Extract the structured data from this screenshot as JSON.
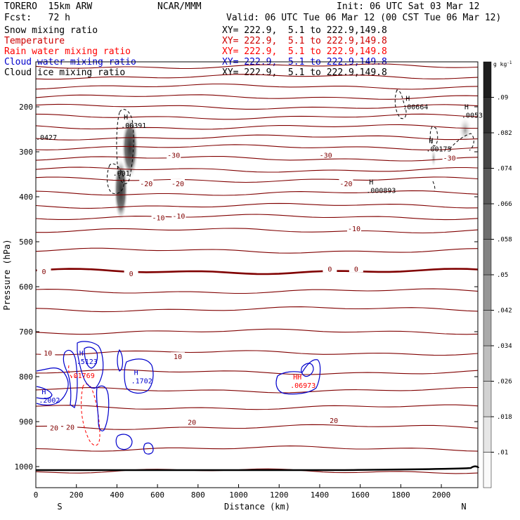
{
  "header": {
    "model": "TORERO  15km ARW",
    "org": "NCAR/MMM",
    "init": "Init: 06 UTC Sat 03 Mar 12",
    "fcst": "Fcst:   72 h",
    "valid": "Valid: 06 UTC Tue 06 Mar 12 (00 CST Tue 06 Mar 12)"
  },
  "fields": [
    {
      "label": "Snow mixing ratio",
      "xy": "XY= 222.9,  5.1 to 222.9,149.8",
      "color": "#000000"
    },
    {
      "label": "Temperature",
      "xy": "XY= 222.9,  5.1 to 222.9,149.8",
      "color": "#cc0000"
    },
    {
      "label": "Rain water mixing ratio",
      "xy": "XY= 222.9,  5.1 to 222.9,149.8",
      "color": "#ff0000"
    },
    {
      "label": "Cloud water mixing ratio",
      "xy": "XY= 222.9,  5.1 to 222.9,149.8",
      "color": "#0000cc"
    },
    {
      "label": "Cloud ice mixing ratio",
      "xy": "XY= 222.9,  5.1 to 222.9,149.8",
      "color": "#000000"
    }
  ],
  "chart_data": {
    "type": "contour",
    "title": "Cross section",
    "xlabel": "Distance (km)",
    "ylabel": "Pressure (hPa)",
    "xlim": [
      0,
      2180
    ],
    "ylim": [
      1050,
      100
    ],
    "x_ticks": [
      0,
      200,
      400,
      600,
      800,
      1000,
      1200,
      1400,
      1600,
      1800,
      2000
    ],
    "y_ticks": [
      200,
      300,
      400,
      500,
      600,
      700,
      800,
      900,
      1000
    ],
    "end_labels": {
      "left": "S",
      "right": "N"
    },
    "colorbar": {
      "unit": "g kg",
      "unit_exp": "-1",
      "ticks": [
        ".01",
        ".018",
        ".026",
        ".034",
        ".042",
        ".05",
        ".058",
        ".066",
        ".074",
        ".082",
        ".09"
      ]
    },
    "temperature_labels": [
      {
        "text": "-30",
        "x": 680,
        "p": 307
      },
      {
        "text": "-30",
        "x": 1430,
        "p": 307
      },
      {
        "text": "-30",
        "x": 2040,
        "p": 313
      },
      {
        "text": "-20",
        "x": 545,
        "p": 370
      },
      {
        "text": "-20",
        "x": 700,
        "p": 370
      },
      {
        "text": "-20",
        "x": 1530,
        "p": 370
      },
      {
        "text": "-10",
        "x": 605,
        "p": 446
      },
      {
        "text": "-10",
        "x": 705,
        "p": 442
      },
      {
        "text": "-10",
        "x": 1570,
        "p": 470
      },
      {
        "text": "0",
        "x": 40,
        "p": 566
      },
      {
        "text": "0",
        "x": 470,
        "p": 570
      },
      {
        "text": "0",
        "x": 1450,
        "p": 560
      },
      {
        "text": "0",
        "x": 1580,
        "p": 560
      },
      {
        "text": "10",
        "x": 60,
        "p": 747
      },
      {
        "text": "10",
        "x": 700,
        "p": 755
      },
      {
        "text": "20",
        "x": 90,
        "p": 913
      },
      {
        "text": "20",
        "x": 170,
        "p": 912
      },
      {
        "text": "20",
        "x": 770,
        "p": 901
      },
      {
        "text": "20",
        "x": 1470,
        "p": 897
      }
    ],
    "extrema": [
      {
        "mark": "H",
        "value": ".00391",
        "x": 420,
        "p": 244,
        "color": "#000000"
      },
      {
        "mark": "",
        "value": ".001",
        "x": 380,
        "p": 350,
        "color": "#000000"
      },
      {
        "mark": "",
        "value": ".0427",
        "x": 0,
        "p": 270,
        "color": "#000000"
      },
      {
        "mark": "H",
        "value": ".00664",
        "x": 1810,
        "p": 202,
        "color": "#000000"
      },
      {
        "mark": "H",
        "value": ".0053",
        "x": 2100,
        "p": 221,
        "color": "#000000"
      },
      {
        "mark": "H",
        "value": ".00175",
        "x": 1925,
        "p": 296,
        "color": "#000000"
      },
      {
        "mark": "H",
        "value": ".000893",
        "x": 1630,
        "p": 388,
        "color": "#000000"
      },
      {
        "mark": "H",
        "value": ".5123",
        "x": 200,
        "p": 769,
        "color": "#0000cc"
      },
      {
        "mark": "H",
        "value": ".1702",
        "x": 470,
        "p": 812,
        "color": "#0000cc"
      },
      {
        "mark": "",
        "value": ".01769",
        "x": 165,
        "p": 800,
        "color": "#ff0000"
      },
      {
        "mark": "H",
        "value": ".2002",
        "x": 15,
        "p": 855,
        "color": "#0000cc"
      },
      {
        "mark": "HH",
        "value": ".06973",
        "x": 1255,
        "p": 822,
        "color": "#ff0000"
      }
    ],
    "snow_max": ".0427",
    "cloud_water_max": ".5123",
    "rain_max": ".06973"
  }
}
